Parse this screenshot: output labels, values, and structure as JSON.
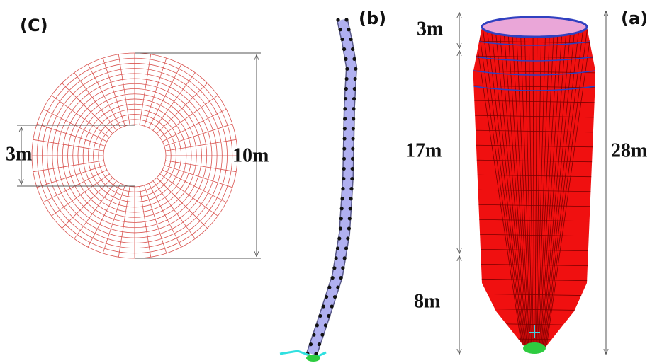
{
  "panels": {
    "c": {
      "label": "(C)",
      "inner_diameter": "3m",
      "outer_diameter": "10m"
    },
    "b": {
      "label": "(b)"
    },
    "a": {
      "label": "(a)",
      "top_height": "3m",
      "middle_height": "17m",
      "bottom_height": "8m",
      "total_height": "28m"
    }
  }
}
